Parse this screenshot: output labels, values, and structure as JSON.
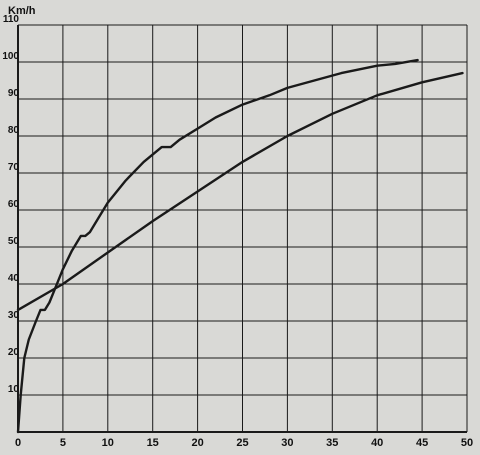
{
  "chart_data": {
    "type": "line",
    "title": "",
    "xlabel": "",
    "ylabel": "Km/h",
    "xlim": [
      0,
      50
    ],
    "ylim": [
      0,
      110
    ],
    "x_ticks": [
      0,
      5,
      10,
      15,
      20,
      25,
      30,
      35,
      40,
      45,
      50
    ],
    "y_ticks": [
      10,
      20,
      30,
      40,
      50,
      60,
      70,
      80,
      90,
      100,
      110
    ],
    "grid": true,
    "legend": "none",
    "colors": {
      "background": "#d9d9d6",
      "line": "#1a1a1a",
      "grid": "#1a1a1a"
    },
    "series": [
      {
        "x": [
          0,
          0.3,
          0.7,
          1.2,
          2,
          2.5,
          3,
          3.5,
          4,
          5,
          6,
          7,
          7.5,
          8,
          9,
          10,
          12,
          14,
          16,
          17,
          18,
          20,
          22,
          25,
          28,
          30,
          33,
          36,
          40,
          42,
          44.5
        ],
        "y": [
          0,
          10,
          20,
          25,
          30,
          33,
          33,
          35,
          38,
          44,
          49,
          53,
          53,
          54,
          58,
          62,
          68,
          73,
          77,
          77,
          79,
          82,
          85,
          88.5,
          91,
          93,
          95,
          97,
          99,
          99.5,
          100.5
        ]
      },
      {
        "x": [
          0,
          5,
          10,
          15,
          20,
          25,
          30,
          35,
          40,
          45,
          49.5
        ],
        "y": [
          33,
          40,
          48.5,
          57,
          65,
          73,
          80,
          86,
          91,
          94.5,
          97
        ]
      }
    ]
  }
}
